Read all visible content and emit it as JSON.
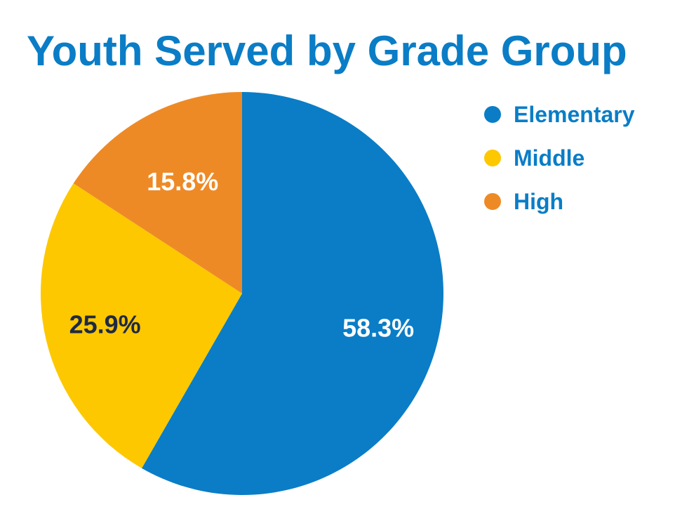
{
  "chart_data": {
    "type": "pie",
    "title": "Youth Served by Grade Group",
    "categories": [
      "Elementary",
      "Middle",
      "High"
    ],
    "values": [
      58.3,
      25.9,
      15.8
    ],
    "data_labels": [
      "58.3%",
      "25.9%",
      "15.8%"
    ],
    "colors": [
      "#0a7dc6",
      "#fdc800",
      "#ee8a26"
    ],
    "label_colors": [
      "#ffffff",
      "#1f2a44",
      "#ffffff"
    ],
    "start_angle": "12 o'clock",
    "direction": "clockwise",
    "legend": "right"
  }
}
